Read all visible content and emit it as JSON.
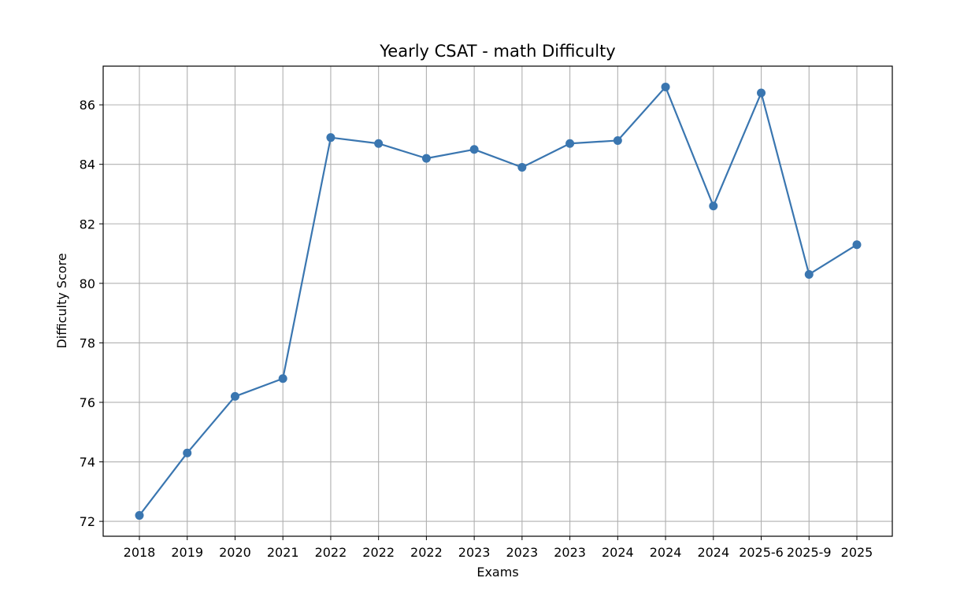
{
  "chart_data": {
    "type": "line",
    "title": "Yearly CSAT - math Difficulty",
    "xlabel": "Exams",
    "ylabel": "Difficulty Score",
    "categories": [
      "2018",
      "2019",
      "2020",
      "2021",
      "2022",
      "2022",
      "2022",
      "2023",
      "2023",
      "2023",
      "2024",
      "2024",
      "2024",
      "2025-6",
      "2025-9",
      "2025"
    ],
    "series": [
      {
        "values": [
          72.2,
          74.3,
          76.2,
          76.8,
          84.9,
          84.7,
          84.2,
          84.5,
          83.9,
          84.7,
          84.8,
          86.6,
          82.6,
          86.4,
          80.3,
          81.3
        ],
        "color": "#3a76b0"
      }
    ],
    "ylim": [
      71.5,
      87.3
    ],
    "yticks": [
      "72",
      "74",
      "76",
      "78",
      "80",
      "82",
      "84",
      "86"
    ],
    "grid": true,
    "marker": "circle"
  }
}
